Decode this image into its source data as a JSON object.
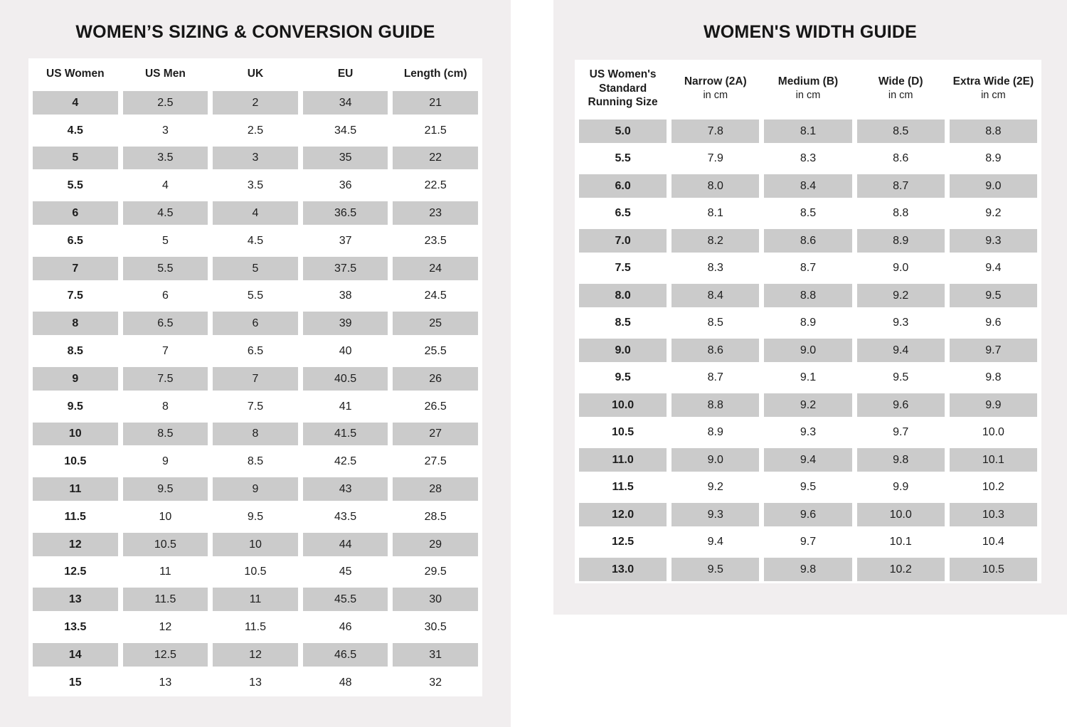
{
  "colors": {
    "panel_background": "#f1eeef",
    "table_background": "#ffffff",
    "shaded_cell": "#cbcbcb",
    "text": "#1d1d1d"
  },
  "chart_data": [
    {
      "type": "table",
      "title": "WOMEN’S SIZING & CONVERSION GUIDE",
      "columns": [
        "US Women",
        "US Men",
        "UK",
        "EU",
        "Length (cm)"
      ],
      "rows": [
        [
          "4",
          "2.5",
          "2",
          "34",
          "21"
        ],
        [
          "4.5",
          "3",
          "2.5",
          "34.5",
          "21.5"
        ],
        [
          "5",
          "3.5",
          "3",
          "35",
          "22"
        ],
        [
          "5.5",
          "4",
          "3.5",
          "36",
          "22.5"
        ],
        [
          "6",
          "4.5",
          "4",
          "36.5",
          "23"
        ],
        [
          "6.5",
          "5",
          "4.5",
          "37",
          "23.5"
        ],
        [
          "7",
          "5.5",
          "5",
          "37.5",
          "24"
        ],
        [
          "7.5",
          "6",
          "5.5",
          "38",
          "24.5"
        ],
        [
          "8",
          "6.5",
          "6",
          "39",
          "25"
        ],
        [
          "8.5",
          "7",
          "6.5",
          "40",
          "25.5"
        ],
        [
          "9",
          "7.5",
          "7",
          "40.5",
          "26"
        ],
        [
          "9.5",
          "8",
          "7.5",
          "41",
          "26.5"
        ],
        [
          "10",
          "8.5",
          "8",
          "41.5",
          "27"
        ],
        [
          "10.5",
          "9",
          "8.5",
          "42.5",
          "27.5"
        ],
        [
          "11",
          "9.5",
          "9",
          "43",
          "28"
        ],
        [
          "11.5",
          "10",
          "9.5",
          "43.5",
          "28.5"
        ],
        [
          "12",
          "10.5",
          "10",
          "44",
          "29"
        ],
        [
          "12.5",
          "11",
          "10.5",
          "45",
          "29.5"
        ],
        [
          "13",
          "11.5",
          "11",
          "45.5",
          "30"
        ],
        [
          "13.5",
          "12",
          "11.5",
          "46",
          "30.5"
        ],
        [
          "14",
          "12.5",
          "12",
          "46.5",
          "31"
        ],
        [
          "15",
          "13",
          "13",
          "48",
          "32"
        ]
      ],
      "layout": {
        "shaded_rows": "alternating starting with first row",
        "grid": "off",
        "cell_style": "gray blocks with white gutters"
      }
    },
    {
      "type": "table",
      "title": "WOMEN'S WIDTH GUIDE",
      "columns": [
        "US Women's Standard Running Size",
        "Narrow (2A)",
        "Medium (B)",
        "Wide (D)",
        "Extra Wide (2E)"
      ],
      "column_subs": [
        "",
        "in cm",
        "in cm",
        "in cm",
        "in cm"
      ],
      "rows": [
        [
          "5.0",
          "7.8",
          "8.1",
          "8.5",
          "8.8"
        ],
        [
          "5.5",
          "7.9",
          "8.3",
          "8.6",
          "8.9"
        ],
        [
          "6.0",
          "8.0",
          "8.4",
          "8.7",
          "9.0"
        ],
        [
          "6.5",
          "8.1",
          "8.5",
          "8.8",
          "9.2"
        ],
        [
          "7.0",
          "8.2",
          "8.6",
          "8.9",
          "9.3"
        ],
        [
          "7.5",
          "8.3",
          "8.7",
          "9.0",
          "9.4"
        ],
        [
          "8.0",
          "8.4",
          "8.8",
          "9.2",
          "9.5"
        ],
        [
          "8.5",
          "8.5",
          "8.9",
          "9.3",
          "9.6"
        ],
        [
          "9.0",
          "8.6",
          "9.0",
          "9.4",
          "9.7"
        ],
        [
          "9.5",
          "8.7",
          "9.1",
          "9.5",
          "9.8"
        ],
        [
          "10.0",
          "8.8",
          "9.2",
          "9.6",
          "9.9"
        ],
        [
          "10.5",
          "8.9",
          "9.3",
          "9.7",
          "10.0"
        ],
        [
          "11.0",
          "9.0",
          "9.4",
          "9.8",
          "10.1"
        ],
        [
          "11.5",
          "9.2",
          "9.5",
          "9.9",
          "10.2"
        ],
        [
          "12.0",
          "9.3",
          "9.6",
          "10.0",
          "10.3"
        ],
        [
          "12.5",
          "9.4",
          "9.7",
          "10.1",
          "10.4"
        ],
        [
          "13.0",
          "9.5",
          "9.8",
          "10.2",
          "10.5"
        ]
      ],
      "layout": {
        "shaded_rows": "alternating starting with first row",
        "grid": "off",
        "cell_style": "gray blocks with white gutters"
      }
    }
  ]
}
